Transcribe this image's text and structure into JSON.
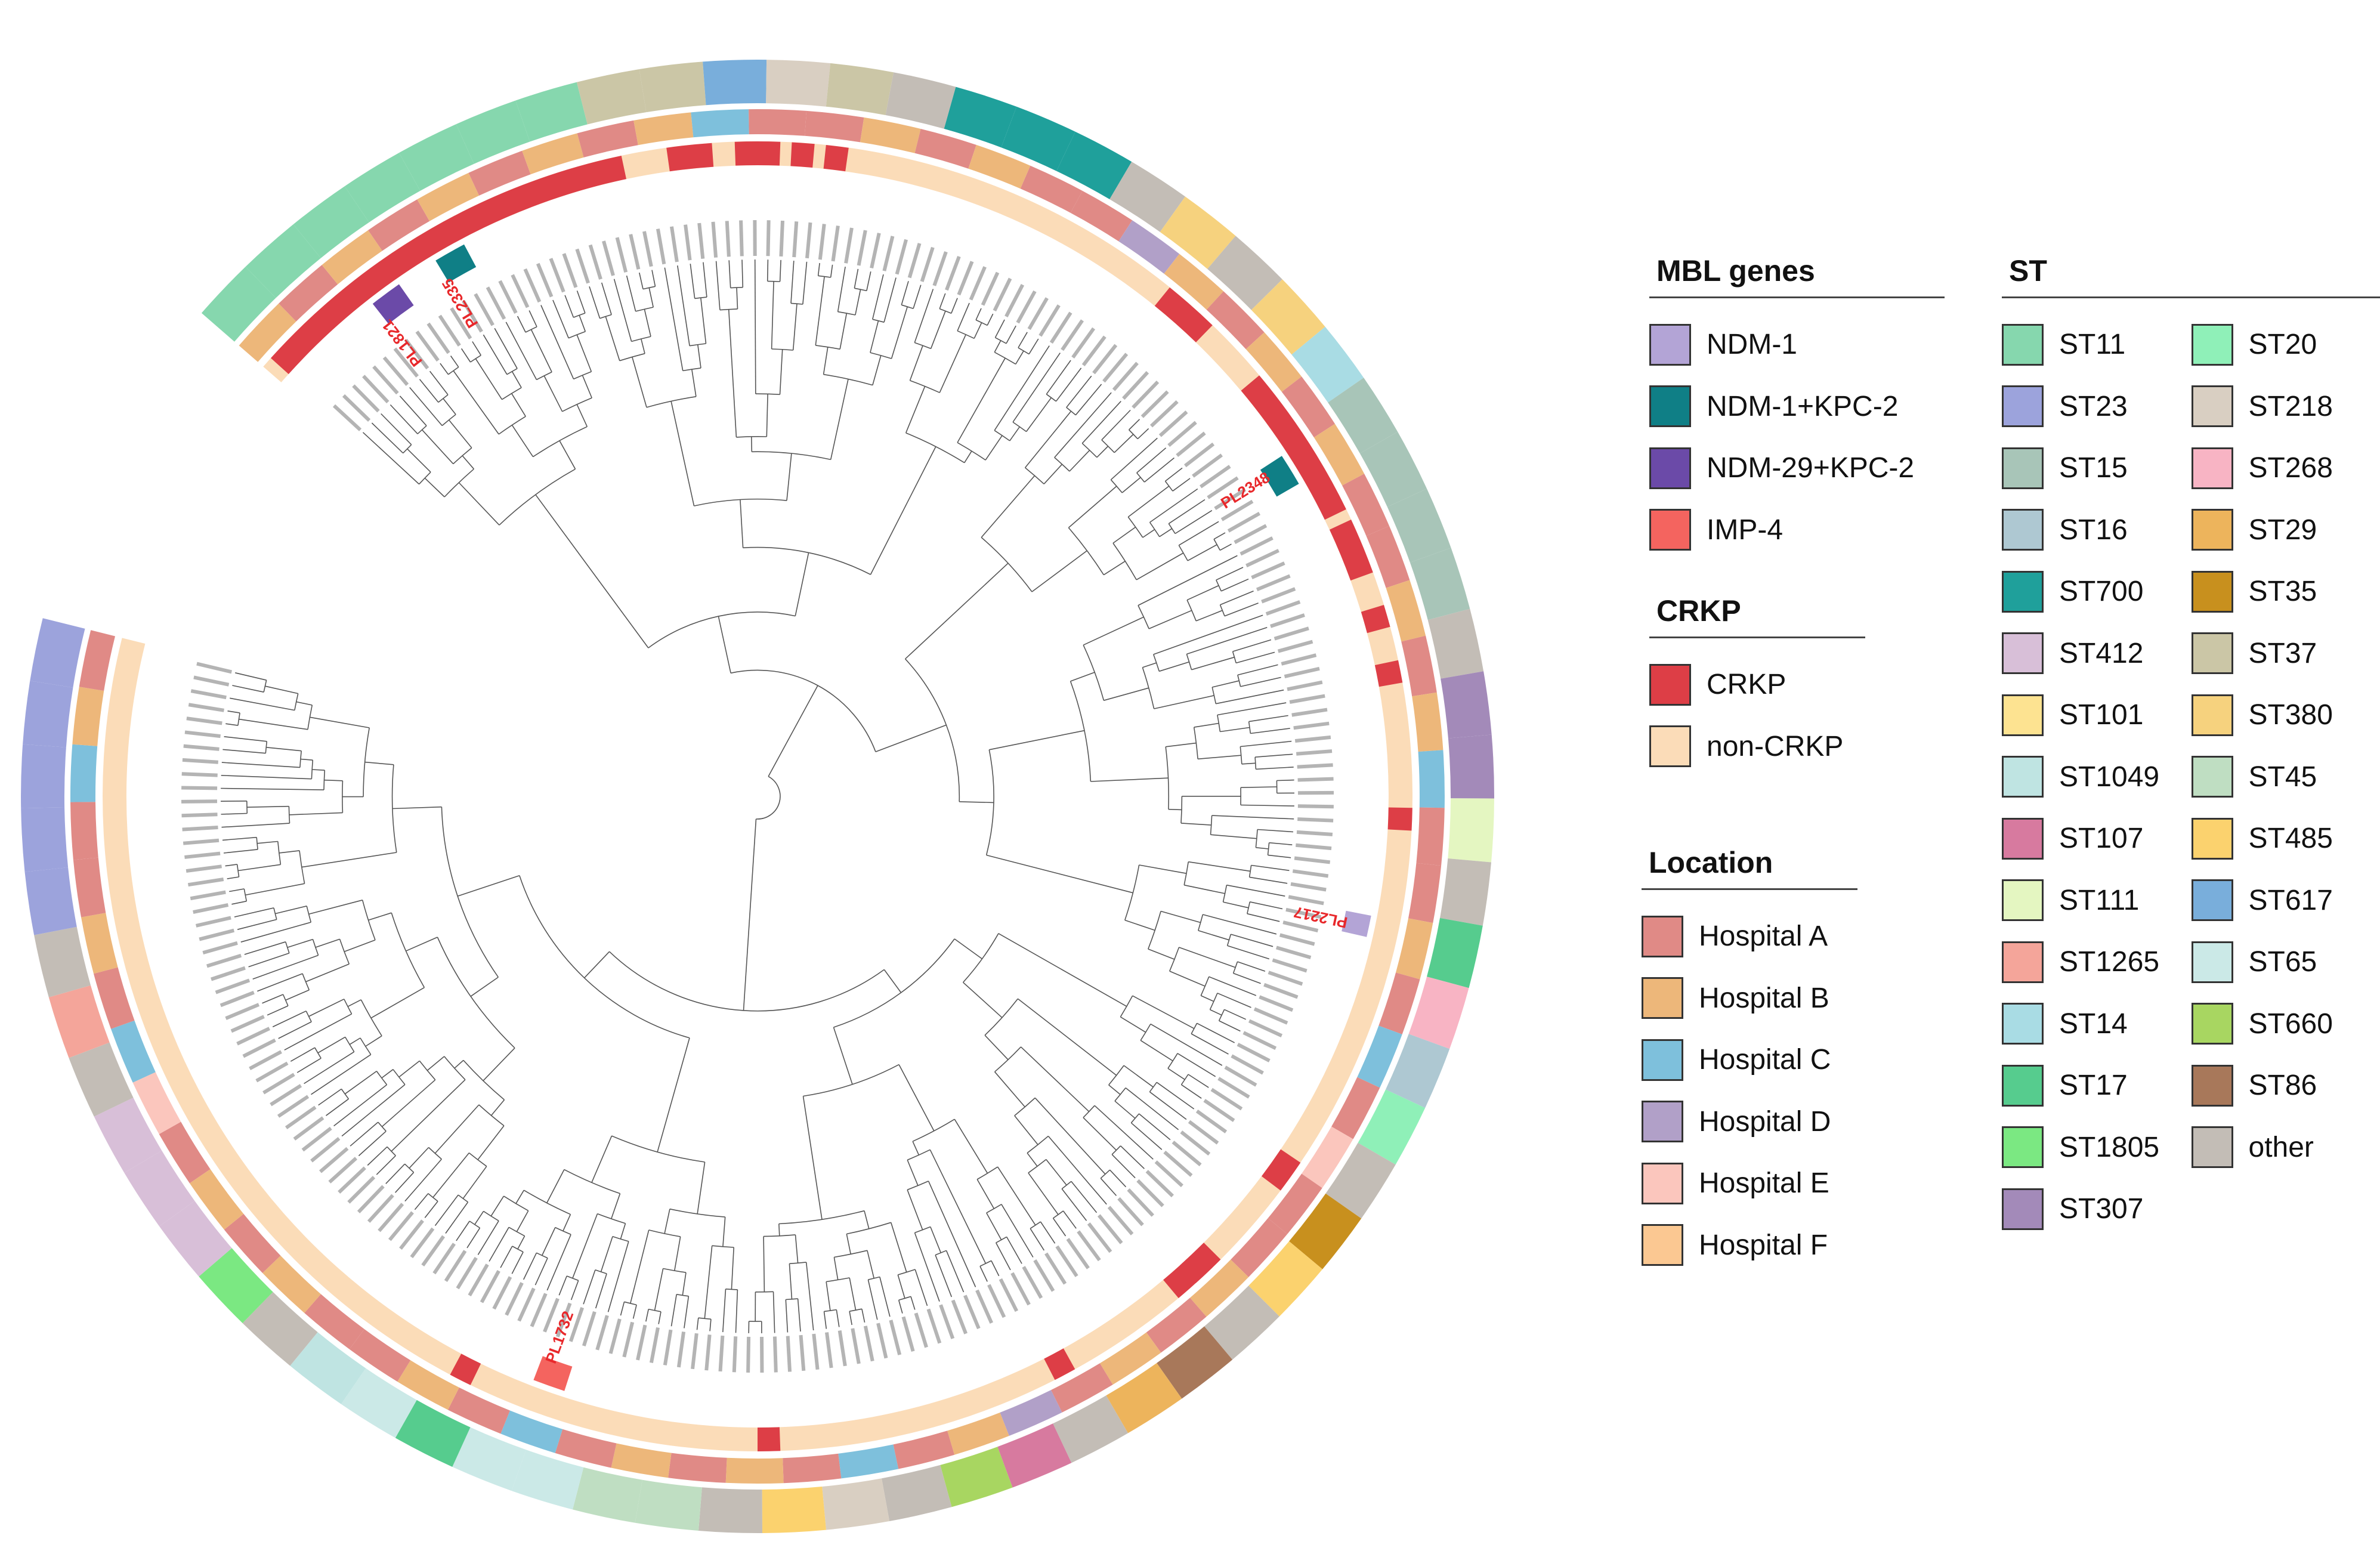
{
  "figure": {
    "type": "circular phylogenetic tree",
    "highlighted_isolates": [
      "PL2335",
      "PL1821",
      "PL2348",
      "PL2217",
      "PL1732"
    ],
    "highlight_color": "#e8282b",
    "rings_inner_to_outer": [
      "MBL genes",
      "CRKP",
      "Location",
      "ST"
    ]
  },
  "legends": {
    "mbl": {
      "title": "MBL genes",
      "items": [
        {
          "label": "NDM-1",
          "color": "#b3a4d6"
        },
        {
          "label": "NDM-1+KPC-2",
          "color": "#0f7f86"
        },
        {
          "label": "NDM-29+KPC-2",
          "color": "#6b4aa8"
        },
        {
          "label": "IMP-4",
          "color": "#f4645f"
        }
      ]
    },
    "crkp": {
      "title": "CRKP",
      "items": [
        {
          "label": "CRKP",
          "color": "#dd3e46"
        },
        {
          "label": "non-CRKP",
          "color": "#fbdcb8"
        }
      ]
    },
    "location": {
      "title": "Location",
      "items": [
        {
          "label": "Hospital A",
          "color": "#e08a86"
        },
        {
          "label": "Hospital B",
          "color": "#edb77a"
        },
        {
          "label": "Hospital C",
          "color": "#7ec0dc"
        },
        {
          "label": "Hospital D",
          "color": "#b1a0c8"
        },
        {
          "label": "Hospital E",
          "color": "#fbc6bd"
        },
        {
          "label": "Hospital F",
          "color": "#fbc892"
        }
      ]
    },
    "st": {
      "title": "ST",
      "col1": [
        {
          "label": "ST11",
          "color": "#86d7ae"
        },
        {
          "label": "ST23",
          "color": "#9ca3dc"
        },
        {
          "label": "ST15",
          "color": "#a8c5b8"
        },
        {
          "label": "ST16",
          "color": "#aec8d2"
        },
        {
          "label": "ST700",
          "color": "#1fa09b"
        },
        {
          "label": "ST412",
          "color": "#d8bfd8"
        },
        {
          "label": "ST101",
          "color": "#fde391"
        },
        {
          "label": "ST1049",
          "color": "#bfe4e2"
        },
        {
          "label": "ST107",
          "color": "#d77a9f"
        },
        {
          "label": "ST111",
          "color": "#e4f6c1"
        },
        {
          "label": "ST1265",
          "color": "#f4a59a"
        },
        {
          "label": "ST14",
          "color": "#a9dce4"
        },
        {
          "label": "ST17",
          "color": "#56cc8e"
        },
        {
          "label": "ST1805",
          "color": "#7be882"
        },
        {
          "label": "ST307",
          "color": "#a38ab9"
        }
      ],
      "col2": [
        {
          "label": "ST20",
          "color": "#8ff0b8"
        },
        {
          "label": "ST218",
          "color": "#d9cfc2"
        },
        {
          "label": "ST268",
          "color": "#f8b4c4"
        },
        {
          "label": "ST29",
          "color": "#edb45c"
        },
        {
          "label": "ST35",
          "color": "#c8901e"
        },
        {
          "label": "ST37",
          "color": "#cbc6a6"
        },
        {
          "label": "ST380",
          "color": "#f6d27e"
        },
        {
          "label": "ST45",
          "color": "#bfdec2"
        },
        {
          "label": "ST485",
          "color": "#fbd26e"
        },
        {
          "label": "ST617",
          "color": "#79aedb"
        },
        {
          "label": "ST65",
          "color": "#cbe9e7"
        },
        {
          "label": "ST660",
          "color": "#a8d661"
        },
        {
          "label": "ST86",
          "color": "#a8785a"
        },
        {
          "label": "other",
          "color": "#c3bdb6"
        }
      ]
    }
  },
  "ring_sequences": {
    "st": [
      "ST11",
      "ST11",
      "ST11",
      "ST11",
      "ST11",
      "ST11",
      "ST11",
      "ST37",
      "ST37",
      "ST617",
      "ST218",
      "ST37",
      "other",
      "ST700",
      "ST700",
      "ST700",
      "other",
      "ST380",
      "other",
      "ST380",
      "ST14",
      "ST15",
      "ST15",
      "ST15",
      "ST15",
      "other",
      "ST307",
      "ST307",
      "ST111",
      "other",
      "ST17",
      "ST268",
      "ST16",
      "ST20",
      "other",
      "ST35",
      "ST485",
      "other",
      "ST86",
      "ST29",
      "other",
      "ST107",
      "ST660",
      "other",
      "ST218",
      "ST485",
      "other",
      "ST45",
      "ST45",
      "ST65",
      "ST65",
      "ST17",
      "ST65",
      "ST1049",
      "other",
      "ST1805",
      "ST412",
      "ST412",
      "ST412",
      "other",
      "ST1265",
      "other",
      "ST23",
      "ST23",
      "ST23",
      "ST23",
      "ST23"
    ],
    "location": [
      "Hospital B",
      "Hospital A",
      "Hospital B",
      "Hospital A",
      "Hospital B",
      "Hospital A",
      "Hospital B",
      "Hospital A",
      "Hospital B",
      "Hospital C",
      "Hospital A",
      "Hospital A",
      "Hospital B",
      "Hospital A",
      "Hospital B",
      "Hospital A",
      "Hospital A",
      "Hospital D",
      "Hospital B",
      "Hospital A",
      "Hospital B",
      "Hospital A",
      "Hospital B",
      "Hospital A",
      "Hospital A",
      "Hospital B",
      "Hospital A",
      "Hospital B",
      "Hospital C",
      "Hospital A",
      "Hospital A",
      "Hospital B",
      "Hospital A",
      "Hospital C",
      "Hospital A",
      "Hospital E",
      "Hospital A",
      "Hospital A",
      "Hospital B",
      "Hospital A",
      "Hospital B",
      "Hospital A",
      "Hospital D",
      "Hospital B",
      "Hospital A",
      "Hospital C",
      "Hospital A",
      "Hospital B",
      "Hospital A",
      "Hospital B",
      "Hospital A",
      "Hospital C",
      "Hospital A",
      "Hospital B",
      "Hospital A",
      "Hospital A",
      "Hospital B",
      "Hospital A",
      "Hospital B",
      "Hospital A",
      "Hospital E",
      "Hospital C",
      "Hospital A",
      "Hospital B",
      "Hospital A",
      "Hospital A",
      "Hospital C",
      "Hospital B",
      "Hospital A"
    ],
    "crkp": [
      "CRKP",
      "CRKP",
      "non-CRKP",
      "CRKP",
      "non-CRKP",
      "CRKP",
      "non-CRKP",
      "CRKP",
      "non-CRKP",
      "CRKP",
      "non-CRKP",
      "CRKP",
      "non-CRKP",
      "CRKP",
      "non-CRKP",
      "CRKP",
      "non-CRKP",
      "CRKP",
      "non-CRKP",
      "CRKP",
      "non-CRKP",
      "CRKP",
      "non-CRKP"
    ]
  }
}
